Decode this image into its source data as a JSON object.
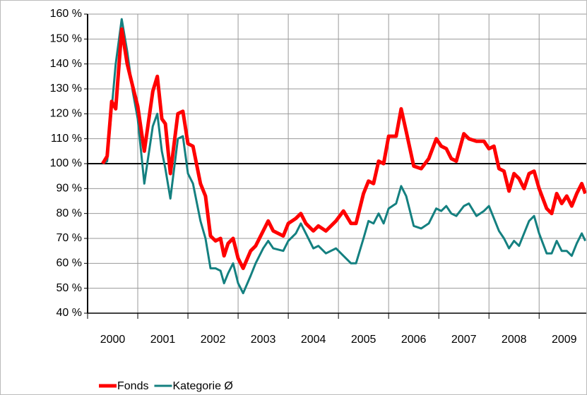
{
  "chart_data": {
    "type": "line",
    "categories": [
      "2000",
      "2001",
      "2002",
      "2003",
      "2004",
      "2005",
      "2006",
      "2007",
      "2008",
      "2009"
    ],
    "x": [
      2000.3,
      2000.39,
      2000.48,
      2000.56,
      2000.68,
      2000.79,
      2000.9,
      2001.0,
      2001.13,
      2001.3,
      2001.39,
      2001.48,
      2001.55,
      2001.65,
      2001.8,
      2001.9,
      2002.0,
      2002.1,
      2002.25,
      2002.35,
      2002.45,
      2002.55,
      2002.65,
      2002.72,
      2002.8,
      2002.9,
      2003.0,
      2003.1,
      2003.25,
      2003.35,
      2003.5,
      2003.6,
      2003.7,
      2003.9,
      2004.0,
      2004.15,
      2004.25,
      2004.35,
      2004.5,
      2004.6,
      2004.75,
      2004.95,
      2005.1,
      2005.25,
      2005.35,
      2005.5,
      2005.6,
      2005.7,
      2005.8,
      2005.9,
      2006.0,
      2006.15,
      2006.25,
      2006.35,
      2006.5,
      2006.65,
      2006.8,
      2006.95,
      2007.05,
      2007.15,
      2007.25,
      2007.35,
      2007.5,
      2007.6,
      2007.75,
      2007.9,
      2008.0,
      2008.1,
      2008.2,
      2008.3,
      2008.4,
      2008.5,
      2008.6,
      2008.7,
      2008.8,
      2008.9,
      2009.0,
      2009.15,
      2009.25,
      2009.35,
      2009.45,
      2009.55,
      2009.65,
      2009.75,
      2009.85,
      2009.92
    ],
    "series": [
      {
        "name": "Fonds",
        "color": "#ff0000",
        "values": [
          100,
          103,
          125,
          122,
          154,
          140,
          131,
          123,
          105,
          129,
          135,
          118,
          116,
          96,
          120,
          121,
          108,
          107,
          92,
          87,
          71,
          69,
          70,
          63,
          68,
          70,
          62,
          58,
          65,
          67,
          73,
          77,
          73,
          71,
          76,
          78,
          80,
          76,
          73,
          75,
          73,
          77,
          81,
          76,
          76,
          88,
          93,
          92,
          101,
          100,
          111,
          111,
          122,
          113,
          99,
          98,
          102,
          110,
          107,
          106,
          102,
          101,
          112,
          110,
          109,
          109,
          106,
          107,
          98,
          97,
          89,
          96,
          94,
          90,
          96,
          97,
          90,
          82,
          80,
          88,
          84,
          87,
          83,
          88,
          92,
          88
        ]
      },
      {
        "name": "Kategorie Ø",
        "color": "#148080",
        "values": [
          100,
          101,
          122,
          140,
          158,
          145,
          129,
          118,
          92,
          115,
          120,
          105,
          98,
          86,
          110,
          111,
          96,
          92,
          77,
          70,
          58,
          58,
          57,
          52,
          56,
          60,
          52,
          48,
          55,
          60,
          66,
          69,
          66,
          65,
          69,
          72,
          76,
          72,
          66,
          67,
          64,
          66,
          63,
          60,
          60,
          70,
          77,
          76,
          80,
          76,
          82,
          84,
          91,
          87,
          75,
          74,
          76,
          82,
          81,
          83,
          80,
          79,
          83,
          84,
          79,
          81,
          83,
          78,
          73,
          70,
          66,
          69,
          67,
          72,
          77,
          79,
          72,
          64,
          64,
          69,
          65,
          65,
          63,
          68,
          72,
          69
        ]
      }
    ],
    "xlim": [
      2000,
      2009.94
    ],
    "xticks": [
      2000,
      2001,
      2002,
      2003,
      2004,
      2005,
      2006,
      2007,
      2008,
      2009
    ],
    "ylim": [
      40,
      160
    ],
    "yticks": [
      {
        "value": 40,
        "label": "40 %"
      },
      {
        "value": 50,
        "label": "50 %"
      },
      {
        "value": 60,
        "label": "60 %"
      },
      {
        "value": 70,
        "label": "70 %"
      },
      {
        "value": 80,
        "label": "80 %"
      },
      {
        "value": 90,
        "label": "90 %"
      },
      {
        "value": 100,
        "label": "100 %"
      },
      {
        "value": 110,
        "label": "110 %"
      },
      {
        "value": 120,
        "label": "120 %"
      },
      {
        "value": 130,
        "label": "130 %"
      },
      {
        "value": 140,
        "label": "140 %"
      },
      {
        "value": 150,
        "label": "150 %"
      },
      {
        "value": 160,
        "label": "160 %"
      }
    ],
    "reference_line": 100,
    "grid": true,
    "legend": "bottom-left"
  }
}
